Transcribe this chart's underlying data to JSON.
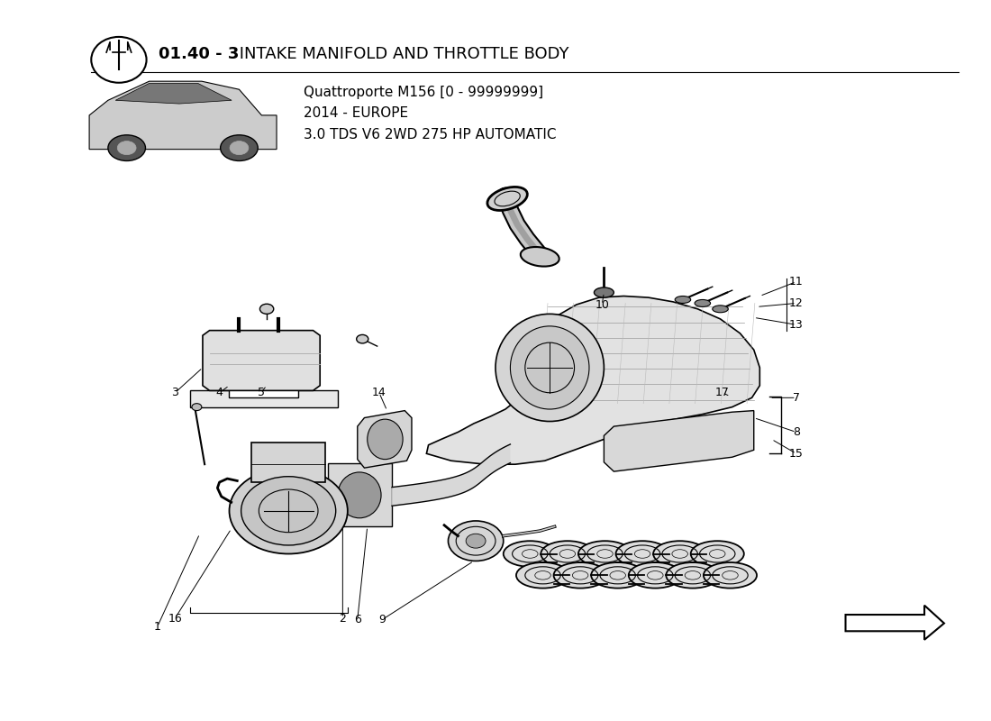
{
  "title_bold": "01.40 - 3",
  "title_rest": " INTAKE MANIFOLD AND THROTTLE BODY",
  "subtitle_line1": "Quattroporte M156 [0 - 99999999]",
  "subtitle_line2": "2014 - EUROPE",
  "subtitle_line3": "3.0 TDS V6 2WD 275 HP AUTOMATIC",
  "bg_color": "#ffffff",
  "title_color": "#000000",
  "title_fontsize": 13,
  "subtitle_fontsize": 11
}
